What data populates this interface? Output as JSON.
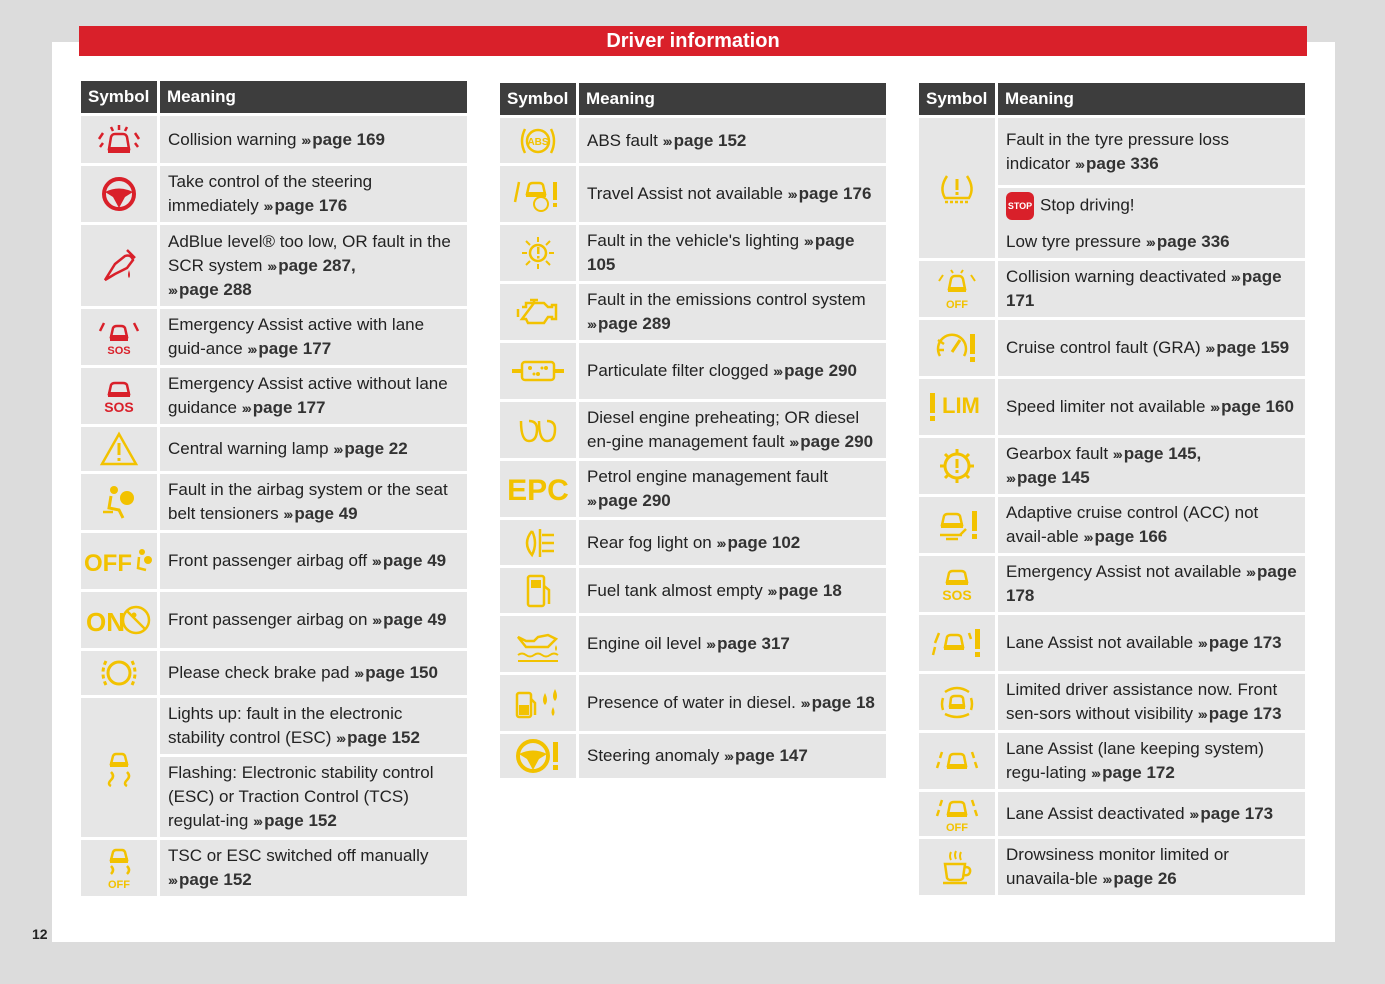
{
  "banner": "Driver information",
  "page_number": "12",
  "header": {
    "symbol": "Symbol",
    "meaning": "Meaning"
  },
  "arrows": "›››",
  "col1": [
    {
      "icon": "collision-warning-icon",
      "h": 47,
      "items": [
        {
          "text": "Collision warning",
          "ref": "page 169"
        }
      ]
    },
    {
      "icon": "steering-wheel-icon",
      "h": 56,
      "items": [
        {
          "text": "Take control of the steering immediately",
          "ref": "page 176"
        }
      ]
    },
    {
      "icon": "adblue-icon",
      "h": 81,
      "items": [
        {
          "text": "AdBlue level® too low, OR fault in the SCR system",
          "ref": "page 287,",
          "ref2": "page 288"
        }
      ]
    },
    {
      "icon": "emergency-assist-lane-icon",
      "h": 56,
      "items": [
        {
          "text": "Emergency Assist active with lane guid-ance",
          "ref": "page 177"
        }
      ]
    },
    {
      "icon": "emergency-assist-sos-icon",
      "h": 56,
      "items": [
        {
          "text": "Emergency Assist active without lane guidance",
          "ref": "page 177"
        }
      ]
    },
    {
      "icon": "warning-triangle-icon",
      "h": 44,
      "items": [
        {
          "text": "Central warning lamp",
          "ref": "page 22"
        }
      ]
    },
    {
      "icon": "airbag-icon",
      "h": 56,
      "items": [
        {
          "text": "Fault in the airbag system or the seat belt tensioners",
          "ref": "page 49"
        }
      ]
    },
    {
      "icon": "airbag-off-icon",
      "h": 56,
      "items": [
        {
          "text": "Front passenger airbag off",
          "ref": "page 49"
        }
      ]
    },
    {
      "icon": "airbag-on-icon",
      "h": 56,
      "items": [
        {
          "text": "Front passenger airbag on",
          "ref": "page 49"
        }
      ]
    },
    {
      "icon": "brake-pad-icon",
      "h": 44,
      "items": [
        {
          "text": "Please check brake pad",
          "ref": "page 150"
        }
      ]
    },
    {
      "icon": "esc-icon",
      "h": 137,
      "items": [
        {
          "text": "Lights up: fault in the electronic stability control (ESC)",
          "ref": "page 152"
        },
        {
          "text": "Flashing: Electronic stability control (ESC) or Traction Control (TCS) regulat-ing",
          "ref": "page 152"
        }
      ]
    },
    {
      "icon": "esc-off-icon",
      "h": 56,
      "items": [
        {
          "text": "TSC or ESC switched off manually",
          "ref": "page 152"
        }
      ]
    }
  ],
  "col2": [
    {
      "icon": "abs-icon",
      "h": 45,
      "items": [
        {
          "text": "ABS fault",
          "ref": "page 152"
        }
      ]
    },
    {
      "icon": "travel-assist-icon",
      "h": 56,
      "items": [
        {
          "text": "Travel Assist not available",
          "ref": "page 176"
        }
      ]
    },
    {
      "icon": "lighting-fault-icon",
      "h": 56,
      "items": [
        {
          "text": "Fault in the vehicle's lighting",
          "ref": "page 105"
        }
      ]
    },
    {
      "icon": "engine-icon",
      "h": 56,
      "items": [
        {
          "text": "Fault in the emissions control system",
          "ref": "page 289"
        }
      ]
    },
    {
      "icon": "particulate-filter-icon",
      "h": 56,
      "items": [
        {
          "text": "Particulate filter clogged",
          "ref": "page 290"
        }
      ]
    },
    {
      "icon": "glow-plug-icon",
      "h": 56,
      "items": [
        {
          "text": "Diesel engine preheating; OR diesel en-gine management fault",
          "ref": "page 290"
        }
      ]
    },
    {
      "icon": "epc-icon",
      "h": 56,
      "items": [
        {
          "text": "Petrol engine management fault",
          "ref": "page 290"
        }
      ]
    },
    {
      "icon": "rear-fog-icon",
      "h": 45,
      "items": [
        {
          "text": "Rear fog light on",
          "ref": "page 102"
        }
      ]
    },
    {
      "icon": "fuel-icon",
      "h": 45,
      "items": [
        {
          "text": "Fuel tank almost empty",
          "ref": "page 18"
        }
      ]
    },
    {
      "icon": "oil-level-icon",
      "h": 56,
      "items": [
        {
          "text": "Engine oil level",
          "ref": "page 317"
        }
      ]
    },
    {
      "icon": "water-in-diesel-icon",
      "h": 56,
      "items": [
        {
          "text": "Presence of water in diesel.",
          "ref": "page 18"
        }
      ]
    },
    {
      "icon": "steering-anomaly-icon",
      "h": 44,
      "items": [
        {
          "text": "Steering anomaly",
          "ref": "page 147"
        }
      ]
    }
  ],
  "col3": [
    {
      "icon": "tyre-pressure-icon",
      "h": 140,
      "items": [
        {
          "text": "Fault in the tyre pressure loss indicator",
          "ref": "page 336"
        },
        {
          "stop": "STOP",
          "text": "Stop driving!",
          "text2": "Low tyre pressure",
          "ref": "page 336"
        }
      ]
    },
    {
      "icon": "collision-off-icon",
      "h": 56,
      "items": [
        {
          "text": "Collision warning deactivated",
          "ref": "page 171"
        }
      ]
    },
    {
      "icon": "cruise-control-icon",
      "h": 56,
      "items": [
        {
          "text": "Cruise control fault (GRA)",
          "ref": "page 159"
        }
      ]
    },
    {
      "icon": "speed-limiter-icon",
      "h": 56,
      "items": [
        {
          "text": "Speed limiter not available",
          "ref": "page 160"
        }
      ]
    },
    {
      "icon": "gearbox-icon",
      "h": 56,
      "items": [
        {
          "text": "Gearbox fault",
          "ref": "page 145,",
          "ref2": "page 145"
        }
      ]
    },
    {
      "icon": "acc-icon",
      "h": 56,
      "items": [
        {
          "text": "Adaptive cruise control (ACC) not avail-able",
          "ref": "page 166"
        }
      ]
    },
    {
      "icon": "emergency-sos-yellow-icon",
      "h": 56,
      "items": [
        {
          "text": "Emergency Assist not available",
          "ref": "page 178"
        }
      ]
    },
    {
      "icon": "lane-assist-icon",
      "h": 56,
      "items": [
        {
          "text": "Lane Assist not available",
          "ref": "page 173"
        }
      ]
    },
    {
      "icon": "sensor-icon",
      "h": 56,
      "items": [
        {
          "text": "Limited driver assistance now. Front sen-sors without visibility",
          "ref": "page 173"
        }
      ]
    },
    {
      "icon": "lane-keeping-icon",
      "h": 56,
      "items": [
        {
          "text": "Lane Assist (lane keeping system) regu-lating",
          "ref": "page 172"
        }
      ]
    },
    {
      "icon": "lane-off-icon",
      "h": 44,
      "items": [
        {
          "text": "Lane Assist deactivated",
          "ref": "page 173"
        }
      ]
    },
    {
      "icon": "coffee-icon",
      "h": 56,
      "items": [
        {
          "text": "Drowsiness monitor limited or unavaila-ble",
          "ref": "page 26"
        }
      ]
    }
  ],
  "icon_colors": {
    "red": "#d9202a",
    "yellow": "#f2c200"
  }
}
